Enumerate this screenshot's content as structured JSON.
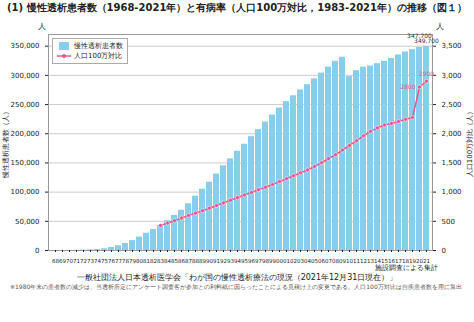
{
  "chart_data": {
    "type": "bar",
    "title": "(1) 慢性透析患者数（1968-2021年）と有病率（人口100万対比，1983-2021年）の推移（図１）",
    "categories": [
      "68",
      "69",
      "70",
      "71",
      "72",
      "73",
      "74",
      "75",
      "76",
      "77",
      "78",
      "79",
      "80",
      "81",
      "82",
      "83",
      "84",
      "85",
      "86",
      "87",
      "88",
      "89",
      "90",
      "91",
      "92",
      "93",
      "94",
      "95",
      "96",
      "97",
      "98",
      "99",
      "00",
      "01",
      "02",
      "03",
      "04",
      "05",
      "06",
      "07",
      "08",
      "09",
      "10",
      "11",
      "12",
      "13",
      "14",
      "15",
      "16",
      "17",
      "18",
      "19",
      "20",
      "21"
    ],
    "series": [
      {
        "name": "慢性透析患者数",
        "type": "bar",
        "color": "#87CEEB",
        "values": [
          20,
          90,
          200,
          400,
          700,
          1100,
          1800,
          2900,
          5200,
          8100,
          12000,
          17000,
          23000,
          29500,
          36000,
          43000,
          51000,
          60000,
          69000,
          80000,
          93000,
          105000,
          117000,
          131000,
          145000,
          157000,
          170000,
          182000,
          195000,
          207000,
          220000,
          232000,
          244000,
          255000,
          265000,
          275000,
          284000,
          294000,
          304000,
          314000,
          324000,
          331000,
          298000,
          308000,
          314000,
          316000,
          320000,
          324000,
          329000,
          335000,
          340000,
          344000,
          347700,
          349700
        ]
      },
      {
        "name": "人口100万対比",
        "type": "line",
        "color": "#E8558A",
        "marker": "circle",
        "axis": "y2",
        "values": [
          null,
          null,
          null,
          null,
          null,
          null,
          null,
          null,
          null,
          null,
          null,
          null,
          null,
          null,
          null,
          430,
          470,
          510,
          555,
          600,
          640,
          680,
          725,
          770,
          815,
          860,
          905,
          950,
          995,
          1040,
          1085,
          1130,
          1180,
          1230,
          1280,
          1330,
          1380,
          1438,
          1503,
          1575,
          1640,
          1720,
          1800,
          1880,
          1965,
          2040,
          2100,
          2150,
          2177,
          2210,
          2247,
          2277,
          2800,
          2900
        ]
      }
    ],
    "ylabel": "慢性透析患者数（人）",
    "y2label": "人口100万対比（人）",
    "ylim": [
      0,
      370000
    ],
    "yticks": [
      0,
      {
        "value": 50000,
        "label": "50,000"
      },
      {
        "value": 100000,
        "label": "100,000"
      },
      {
        "value": 150000,
        "label": "150,000"
      },
      {
        "value": 200000,
        "label": "200,000"
      },
      {
        "value": 250000,
        "label": "250,000"
      },
      {
        "value": 300000,
        "label": "300,000"
      },
      {
        "value": 350000,
        "label": "350,000"
      }
    ],
    "y2lim": [
      0,
      3700
    ],
    "y2ticks": [
      0,
      500,
      {
        "value": 1000,
        "label": "1,000"
      },
      {
        "value": 1500,
        "label": "1,500"
      },
      {
        "value": 2000,
        "label": "2,000"
      },
      {
        "value": 2500,
        "label": "2,500"
      },
      {
        "value": 3000,
        "label": "3,000"
      },
      {
        "value": 3500,
        "label": "3,500"
      }
    ],
    "grid": true,
    "legend": "upper left",
    "y_unit": "人",
    "y2_unit": "人",
    "annotations": [
      {
        "text": "349,700",
        "x": "21",
        "y": 349700,
        "axis": "y"
      },
      {
        "text": "347,700",
        "x": "20",
        "y": 347700,
        "axis": "y"
      },
      {
        "text": "2900",
        "x": "21",
        "y": 2900,
        "axis": "y2"
      },
      {
        "text": "2800",
        "x": "20",
        "y": 2800,
        "axis": "y2"
      }
    ],
    "footer": "一般社団法人日本透析医学会「わが国の慢性透析療法の現況（2021年12月31日現在）」",
    "notes": [
      "施設調査による集計",
      "※1980年末の患者数の減少は、当透析所定にアンケート調査客が参加との利料紙に因らったことによる見積け上の変更である。人口100万対比は自疾患者数を用に算出"
    ]
  }
}
